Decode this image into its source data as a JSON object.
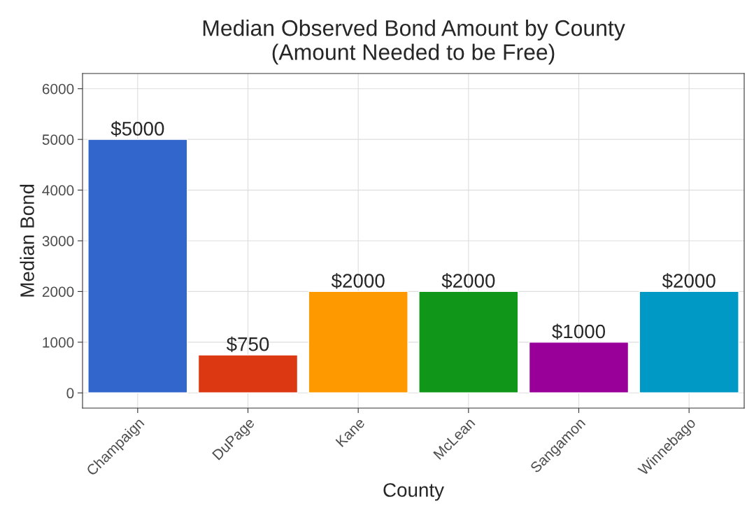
{
  "chart_data": {
    "type": "bar",
    "title": "Median Observed Bond Amount by County\n(Amount Needed to be Free)",
    "xlabel": "County",
    "ylabel": "Median Bond",
    "categories": [
      "Champaign",
      "DuPage",
      "Kane",
      "McLean",
      "Sangamon",
      "Winnebago"
    ],
    "values": [
      5000,
      750,
      2000,
      2000,
      1000,
      2000
    ],
    "colors": [
      "#3366cc",
      "#dc3912",
      "#ff9900",
      "#109618",
      "#990099",
      "#0099c6"
    ],
    "value_labels": [
      "$5000",
      "$750",
      "$2000",
      "$2000",
      "$1000",
      "$2000"
    ],
    "ylim": [
      -300,
      6300
    ],
    "yticks": [
      0,
      1000,
      2000,
      3000,
      4000,
      5000,
      6000
    ],
    "grid": true,
    "legend": false
  }
}
